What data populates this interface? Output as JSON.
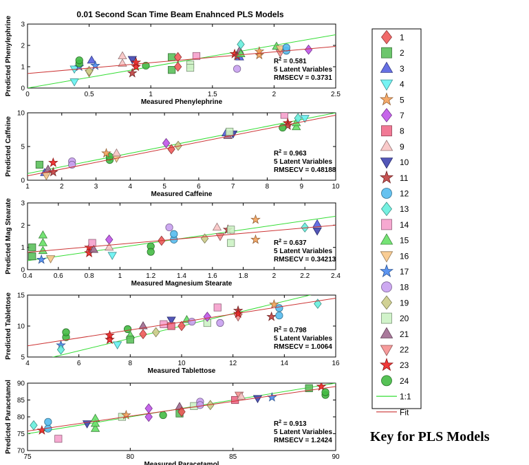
{
  "figure_title": "0.01 Second Scan Time Beam Enahnced PLS Models",
  "key_caption": "Key for PLS Models",
  "legend": {
    "entries": [
      {
        "label": "1",
        "marker": "diamond",
        "color": "#f05a5a"
      },
      {
        "label": "2",
        "marker": "square",
        "color": "#5cc05c"
      },
      {
        "label": "3",
        "marker": "triangle-up",
        "color": "#5560e0"
      },
      {
        "label": "4",
        "marker": "triangle-down",
        "color": "#66f2f2"
      },
      {
        "label": "5",
        "marker": "star",
        "color": "#f5a15a"
      },
      {
        "label": "7",
        "marker": "diamond",
        "color": "#c055e8"
      },
      {
        "label": "8",
        "marker": "square",
        "color": "#f06a8a"
      },
      {
        "label": "9",
        "marker": "triangle-up",
        "color": "#f8c4c4"
      },
      {
        "label": "10",
        "marker": "triangle-down",
        "color": "#4045b0"
      },
      {
        "label": "11",
        "marker": "star",
        "color": "#c04040"
      },
      {
        "label": "12",
        "marker": "circle",
        "color": "#55bbee"
      },
      {
        "label": "13",
        "marker": "diamond",
        "color": "#66eedd"
      },
      {
        "label": "14",
        "marker": "square",
        "color": "#f5a0cc"
      },
      {
        "label": "15",
        "marker": "triangle-up",
        "color": "#66e066"
      },
      {
        "label": "16",
        "marker": "triangle-down",
        "color": "#f8c88a"
      },
      {
        "label": "17",
        "marker": "star",
        "color": "#4a8af0"
      },
      {
        "label": "18",
        "marker": "circle",
        "color": "#c8a0f0"
      },
      {
        "label": "19",
        "marker": "diamond",
        "color": "#cccc88"
      },
      {
        "label": "20",
        "marker": "square",
        "color": "#ccf2c4"
      },
      {
        "label": "21",
        "marker": "triangle-up",
        "color": "#a06a90"
      },
      {
        "label": "22",
        "marker": "triangle-down",
        "color": "#f59090"
      },
      {
        "label": "23",
        "marker": "star",
        "color": "#ee2222"
      },
      {
        "label": "24",
        "marker": "circle",
        "color": "#44bb44"
      }
    ],
    "line_entries": [
      {
        "label": "1:1",
        "color": "#33dd33"
      },
      {
        "label": "Fit",
        "color": "#cc3333"
      }
    ]
  },
  "chart_data": [
    {
      "type": "scatter",
      "xlabel": "Measured Phenylephrine",
      "ylabel": "Predicted Phenylephrine",
      "xlim": [
        0,
        2.5
      ],
      "ylim": [
        0,
        3
      ],
      "xticks": [
        "0",
        "0.5",
        "1",
        "1.5",
        "2",
        "2.5"
      ],
      "yticks": [
        "0",
        "1",
        "2",
        "3"
      ],
      "stats": {
        "r2": "= 0.581",
        "lv": "5 Latent Variables",
        "rmse": "RMSECV = 0.3731"
      },
      "fit": [
        [
          0,
          0.68
        ],
        [
          2.5,
          1.95
        ]
      ],
      "points": [
        {
          "s": "4",
          "x": 0.38,
          "y": 0.3
        },
        {
          "s": "4",
          "x": 0.38,
          "y": 0.9
        },
        {
          "s": "17",
          "x": 0.42,
          "y": 1.0
        },
        {
          "s": "24",
          "x": 0.42,
          "y": 1.15
        },
        {
          "s": "24",
          "x": 0.42,
          "y": 1.3
        },
        {
          "s": "16",
          "x": 0.5,
          "y": 0.72
        },
        {
          "s": "19",
          "x": 0.5,
          "y": 0.8
        },
        {
          "s": "3",
          "x": 0.52,
          "y": 1.3
        },
        {
          "s": "17",
          "x": 0.55,
          "y": 1.05
        },
        {
          "s": "9",
          "x": 0.77,
          "y": 1.15
        },
        {
          "s": "9",
          "x": 0.77,
          "y": 1.5
        },
        {
          "s": "10",
          "x": 0.85,
          "y": 1.35
        },
        {
          "s": "11",
          "x": 0.85,
          "y": 0.7
        },
        {
          "s": "23",
          "x": 0.88,
          "y": 1.0
        },
        {
          "s": "23",
          "x": 0.88,
          "y": 1.2
        },
        {
          "s": "24",
          "x": 0.96,
          "y": 1.05
        },
        {
          "s": "2",
          "x": 1.17,
          "y": 0.85
        },
        {
          "s": "2",
          "x": 1.17,
          "y": 1.45
        },
        {
          "s": "1",
          "x": 1.22,
          "y": 1.0
        },
        {
          "s": "1",
          "x": 1.22,
          "y": 1.45
        },
        {
          "s": "20",
          "x": 1.32,
          "y": 1.1
        },
        {
          "s": "20",
          "x": 1.32,
          "y": 0.95
        },
        {
          "s": "14",
          "x": 1.37,
          "y": 1.5
        },
        {
          "s": "23",
          "x": 1.68,
          "y": 1.6
        },
        {
          "s": "21",
          "x": 1.72,
          "y": 1.75
        },
        {
          "s": "3",
          "x": 1.72,
          "y": 1.45
        },
        {
          "s": "13",
          "x": 1.73,
          "y": 2.05
        },
        {
          "s": "18",
          "x": 1.7,
          "y": 0.9
        },
        {
          "s": "11",
          "x": 1.7,
          "y": 1.5
        },
        {
          "s": "15",
          "x": 1.73,
          "y": 1.6
        },
        {
          "s": "5",
          "x": 1.88,
          "y": 1.55
        },
        {
          "s": "5",
          "x": 1.88,
          "y": 1.72
        },
        {
          "s": "15",
          "x": 2.02,
          "y": 1.95
        },
        {
          "s": "22",
          "x": 2.05,
          "y": 1.65
        },
        {
          "s": "16",
          "x": 2.05,
          "y": 1.85
        },
        {
          "s": "12",
          "x": 2.1,
          "y": 1.75
        },
        {
          "s": "12",
          "x": 2.1,
          "y": 1.9
        },
        {
          "s": "7",
          "x": 2.28,
          "y": 1.8
        }
      ]
    },
    {
      "type": "scatter",
      "xlabel": "Measured Caffeine",
      "ylabel": "Predicted Caffeine",
      "xlim": [
        1,
        10
      ],
      "ylim": [
        0,
        10
      ],
      "xticks": [
        "1",
        "2",
        "3",
        "4",
        "5",
        "6",
        "7",
        "8",
        "9",
        "10"
      ],
      "yticks": [
        "0",
        "5",
        "10"
      ],
      "stats": {
        "r2": "= 0.963",
        "lv": "5 Latent Variables",
        "rmse": "RMSECV = 0.48188"
      },
      "fit": [
        [
          1,
          0.65
        ],
        [
          10,
          9.65
        ]
      ],
      "points": [
        {
          "s": "2",
          "x": 1.35,
          "y": 2.3
        },
        {
          "s": "3",
          "x": 1.5,
          "y": 1.1
        },
        {
          "s": "16",
          "x": 1.55,
          "y": 0.7
        },
        {
          "s": "21",
          "x": 1.6,
          "y": 1.6
        },
        {
          "s": "11",
          "x": 1.75,
          "y": 1.2
        },
        {
          "s": "23",
          "x": 1.75,
          "y": 2.6
        },
        {
          "s": "18",
          "x": 2.3,
          "y": 2.8
        },
        {
          "s": "18",
          "x": 2.3,
          "y": 2.3
        },
        {
          "s": "24",
          "x": 3.4,
          "y": 3.0
        },
        {
          "s": "24",
          "x": 3.4,
          "y": 3.5
        },
        {
          "s": "5",
          "x": 3.3,
          "y": 4.0
        },
        {
          "s": "16",
          "x": 3.6,
          "y": 3.3
        },
        {
          "s": "9",
          "x": 3.6,
          "y": 4.0
        },
        {
          "s": "7",
          "x": 5.05,
          "y": 5.5
        },
        {
          "s": "1",
          "x": 5.2,
          "y": 4.6
        },
        {
          "s": "19",
          "x": 5.4,
          "y": 5.1
        },
        {
          "s": "3",
          "x": 6.8,
          "y": 7.0
        },
        {
          "s": "21",
          "x": 6.85,
          "y": 6.6
        },
        {
          "s": "10",
          "x": 7.0,
          "y": 6.9
        },
        {
          "s": "20",
          "x": 6.9,
          "y": 7.2
        },
        {
          "s": "14",
          "x": 8.5,
          "y": 9.7
        },
        {
          "s": "23",
          "x": 8.6,
          "y": 8.5
        },
        {
          "s": "11",
          "x": 8.6,
          "y": 8.1
        },
        {
          "s": "24",
          "x": 8.45,
          "y": 7.8
        },
        {
          "s": "15",
          "x": 8.85,
          "y": 7.9
        },
        {
          "s": "15",
          "x": 8.85,
          "y": 8.5
        },
        {
          "s": "13",
          "x": 8.9,
          "y": 9.2
        },
        {
          "s": "4",
          "x": 9.1,
          "y": 9.2
        }
      ]
    },
    {
      "type": "scatter",
      "xlabel": "Measured Magnesium Stearate",
      "ylabel": "Predicted Mag Stearate",
      "xlim": [
        0.4,
        2.4
      ],
      "ylim": [
        0,
        3
      ],
      "xticks": [
        "0.4",
        "0.6",
        "0.8",
        "1",
        "1.2",
        "1.4",
        "1.6",
        "1.8",
        "2",
        "2.2",
        "2.4"
      ],
      "yticks": [
        "0",
        "1",
        "2",
        "3"
      ],
      "stats": {
        "r2": "= 0.637",
        "lv": "5 Latent Variables",
        "rmse": "RMSECV = 0.34213"
      },
      "fit": [
        [
          0.4,
          0.78
        ],
        [
          2.4,
          2.0
        ]
      ],
      "points": [
        {
          "s": "2",
          "x": 0.43,
          "y": 0.6
        },
        {
          "s": "2",
          "x": 0.43,
          "y": 1.0
        },
        {
          "s": "15",
          "x": 0.5,
          "y": 0.85
        },
        {
          "s": "15",
          "x": 0.5,
          "y": 1.2
        },
        {
          "s": "15",
          "x": 0.5,
          "y": 1.55
        },
        {
          "s": "17",
          "x": 0.49,
          "y": 0.45
        },
        {
          "s": "16",
          "x": 0.55,
          "y": 0.5
        },
        {
          "s": "23",
          "x": 0.8,
          "y": 1.0
        },
        {
          "s": "23",
          "x": 0.8,
          "y": 0.75
        },
        {
          "s": "14",
          "x": 0.82,
          "y": 1.2
        },
        {
          "s": "21",
          "x": 0.83,
          "y": 0.9
        },
        {
          "s": "7",
          "x": 0.93,
          "y": 1.35
        },
        {
          "s": "4",
          "x": 0.95,
          "y": 0.65
        },
        {
          "s": "9",
          "x": 0.93,
          "y": 1.0
        },
        {
          "s": "24",
          "x": 1.2,
          "y": 1.05
        },
        {
          "s": "24",
          "x": 1.2,
          "y": 0.8
        },
        {
          "s": "1",
          "x": 1.27,
          "y": 1.3
        },
        {
          "s": "18",
          "x": 1.32,
          "y": 1.9
        },
        {
          "s": "12",
          "x": 1.35,
          "y": 1.35
        },
        {
          "s": "12",
          "x": 1.35,
          "y": 1.6
        },
        {
          "s": "19",
          "x": 1.55,
          "y": 1.4
        },
        {
          "s": "9",
          "x": 1.63,
          "y": 1.9
        },
        {
          "s": "22",
          "x": 1.65,
          "y": 1.5
        },
        {
          "s": "11",
          "x": 1.7,
          "y": 1.8
        },
        {
          "s": "20",
          "x": 1.72,
          "y": 1.8
        },
        {
          "s": "20",
          "x": 1.72,
          "y": 1.2
        },
        {
          "s": "5",
          "x": 1.88,
          "y": 2.25
        },
        {
          "s": "5",
          "x": 1.88,
          "y": 1.35
        },
        {
          "s": "13",
          "x": 2.2,
          "y": 1.9
        },
        {
          "s": "10",
          "x": 2.28,
          "y": 1.75
        },
        {
          "s": "3",
          "x": 2.28,
          "y": 2.05
        }
      ]
    },
    {
      "type": "scatter",
      "xlabel": "Measured Tablettose",
      "ylabel": "Predicted Tablettose",
      "xlim": [
        4,
        16
      ],
      "ylim": [
        5,
        15
      ],
      "xticks": [
        "4",
        "6",
        "8",
        "10",
        "12",
        "14",
        "16"
      ],
      "yticks": [
        "5",
        "10",
        "15"
      ],
      "stats": {
        "r2": "= 0.798",
        "lv": "5 Latent Variables",
        "rmse": "RMSECV = 1.0064"
      },
      "fit": [
        [
          4,
          6.8
        ],
        [
          16,
          14.5
        ]
      ],
      "points": [
        {
          "s": "17",
          "x": 5.3,
          "y": 6.9
        },
        {
          "s": "13",
          "x": 5.3,
          "y": 6.2
        },
        {
          "s": "24",
          "x": 5.5,
          "y": 8.2
        },
        {
          "s": "24",
          "x": 5.5,
          "y": 9.0
        },
        {
          "s": "23",
          "x": 7.2,
          "y": 7.8
        },
        {
          "s": "23",
          "x": 7.2,
          "y": 8.5
        },
        {
          "s": "4",
          "x": 7.5,
          "y": 7.0
        },
        {
          "s": "24",
          "x": 7.9,
          "y": 9.5
        },
        {
          "s": "15",
          "x": 8.0,
          "y": 8.5
        },
        {
          "s": "2",
          "x": 8.0,
          "y": 7.8
        },
        {
          "s": "21",
          "x": 8.5,
          "y": 10.0
        },
        {
          "s": "1",
          "x": 8.5,
          "y": 8.7
        },
        {
          "s": "19",
          "x": 9.0,
          "y": 9.0
        },
        {
          "s": "14",
          "x": 9.3,
          "y": 10.3
        },
        {
          "s": "10",
          "x": 9.6,
          "y": 11.0
        },
        {
          "s": "8",
          "x": 9.6,
          "y": 10.0
        },
        {
          "s": "15",
          "x": 10.2,
          "y": 11.0
        },
        {
          "s": "1",
          "x": 10.0,
          "y": 10.0
        },
        {
          "s": "18",
          "x": 10.4,
          "y": 10.7
        },
        {
          "s": "20",
          "x": 11.0,
          "y": 10.5
        },
        {
          "s": "7",
          "x": 11.0,
          "y": 11.5
        },
        {
          "s": "14",
          "x": 11.4,
          "y": 13.0
        },
        {
          "s": "18",
          "x": 11.5,
          "y": 10.5
        },
        {
          "s": "11",
          "x": 12.2,
          "y": 12.5
        },
        {
          "s": "22",
          "x": 12.2,
          "y": 11.5
        },
        {
          "s": "23",
          "x": 12.2,
          "y": 12.0
        },
        {
          "s": "5",
          "x": 13.6,
          "y": 13.5
        },
        {
          "s": "11",
          "x": 13.5,
          "y": 11.5
        },
        {
          "s": "12",
          "x": 13.8,
          "y": 11.7
        },
        {
          "s": "12",
          "x": 13.8,
          "y": 12.9
        },
        {
          "s": "13",
          "x": 15.3,
          "y": 13.6
        }
      ]
    },
    {
      "type": "scatter",
      "xlabel": "Measured Paracetamol",
      "ylabel": "Predicted Paracetamol",
      "xlim": [
        75,
        90
      ],
      "ylim": [
        70,
        90
      ],
      "xticks": [
        "75",
        "80",
        "85",
        "90"
      ],
      "yticks": [
        "70",
        "75",
        "80",
        "85",
        "90"
      ],
      "stats": {
        "r2": "= 0.913",
        "lv": "5 Latent Variables",
        "rmse": "RMSECV = 1.2424"
      },
      "fit": [
        [
          75,
          75.8
        ],
        [
          90,
          89.0
        ]
      ],
      "points": [
        {
          "s": "13",
          "x": 75.3,
          "y": 77.5
        },
        {
          "s": "23",
          "x": 75.7,
          "y": 76.0
        },
        {
          "s": "12",
          "x": 76.0,
          "y": 76.5
        },
        {
          "s": "12",
          "x": 76.0,
          "y": 78.5
        },
        {
          "s": "14",
          "x": 76.5,
          "y": 73.5
        },
        {
          "s": "10",
          "x": 77.9,
          "y": 78.0
        },
        {
          "s": "15",
          "x": 78.3,
          "y": 76.5
        },
        {
          "s": "15",
          "x": 78.3,
          "y": 78.0
        },
        {
          "s": "15",
          "x": 78.3,
          "y": 79.5
        },
        {
          "s": "20",
          "x": 79.6,
          "y": 80.0
        },
        {
          "s": "5",
          "x": 79.8,
          "y": 80.5
        },
        {
          "s": "7",
          "x": 80.9,
          "y": 80.0
        },
        {
          "s": "7",
          "x": 80.9,
          "y": 82.5
        },
        {
          "s": "24",
          "x": 81.6,
          "y": 80.5
        },
        {
          "s": "2",
          "x": 82.4,
          "y": 81.0
        },
        {
          "s": "21",
          "x": 82.4,
          "y": 83.0
        },
        {
          "s": "1",
          "x": 82.5,
          "y": 81.5
        },
        {
          "s": "20",
          "x": 83.1,
          "y": 83.2
        },
        {
          "s": "18",
          "x": 83.4,
          "y": 84.5
        },
        {
          "s": "18",
          "x": 83.4,
          "y": 83.5
        },
        {
          "s": "19",
          "x": 83.9,
          "y": 83.5
        },
        {
          "s": "8",
          "x": 85.1,
          "y": 85.0
        },
        {
          "s": "22",
          "x": 85.3,
          "y": 86.5
        },
        {
          "s": "9",
          "x": 85.4,
          "y": 86.0
        },
        {
          "s": "10",
          "x": 86.2,
          "y": 85.5
        },
        {
          "s": "17",
          "x": 86.9,
          "y": 85.8
        },
        {
          "s": "2",
          "x": 88.7,
          "y": 88.5
        },
        {
          "s": "23",
          "x": 89.3,
          "y": 89.0
        },
        {
          "s": "24",
          "x": 89.5,
          "y": 86.5
        },
        {
          "s": "24",
          "x": 89.5,
          "y": 87.3
        }
      ]
    }
  ]
}
